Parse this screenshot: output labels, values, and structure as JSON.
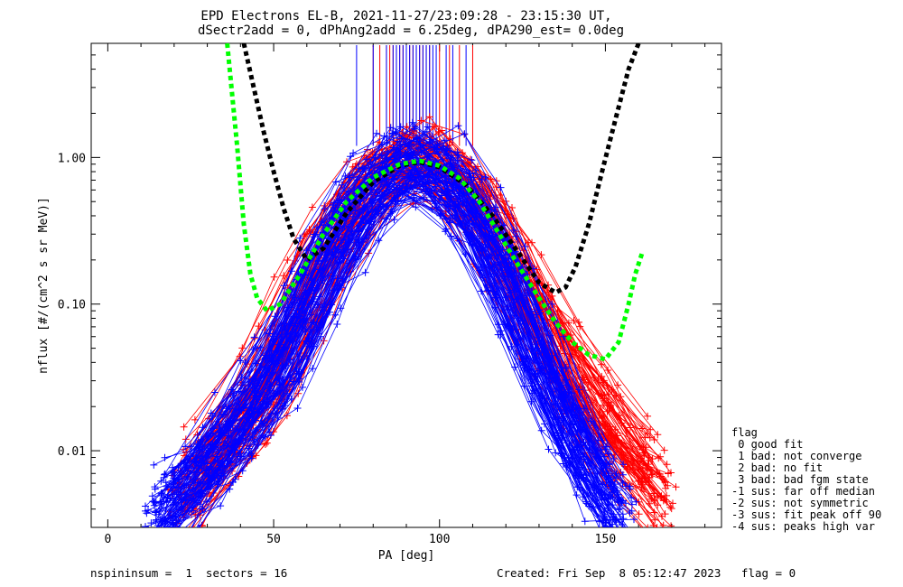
{
  "title_line1": "EPD Electrons EL-B, 2021-11-27/23:09:28 - 23:15:30 UT,",
  "title_line2": "dSectr2add = 0, dPhAng2add = 6.25deg, dPA290_est=   0.0deg",
  "footer": {
    "left": "nspininsum =  1  sectors = 16",
    "right": "Created: Fri Sep  8 05:12:47 2023   flag = 0"
  },
  "legend": {
    "title": "flag",
    "items": [
      " 0 good fit",
      " 1 bad: not converge",
      " 2 bad: no fit",
      " 3 bad: bad fgm state",
      "-1 sus: far off median",
      "-2 sus: not symmetric",
      "-3 sus: fit peak off 90",
      "-4 sus: peaks high var"
    ]
  },
  "chart_data": {
    "type": "line",
    "xlabel": "PA [deg]",
    "ylabel": "nflux [#/(cm^2 s sr MeV)]",
    "xlim": [
      -5,
      185
    ],
    "ylim": [
      0.003,
      6
    ],
    "yscale": "log",
    "xticks": [
      0,
      50,
      100,
      150
    ],
    "yticks": [
      0.01,
      0.1,
      1.0
    ],
    "ytick_labels": [
      "0.01",
      "0.10",
      "1.00"
    ],
    "series": [
      {
        "color": "#0000ff",
        "style": "many thin lines with + markers (spin-sector profiles)",
        "profile": {
          "x": [
            12,
            25,
            40,
            55,
            65,
            75,
            85,
            93,
            100,
            110,
            120,
            130,
            140,
            150,
            158
          ],
          "y": [
            0.003,
            0.006,
            0.015,
            0.05,
            0.18,
            0.45,
            0.8,
            0.95,
            0.8,
            0.45,
            0.15,
            0.04,
            0.012,
            0.005,
            0.003
          ]
        }
      },
      {
        "color": "#ff0000",
        "style": "many thin lines with + markers (spin-sector profiles)",
        "profile": {
          "x": [
            20,
            30,
            45,
            55,
            65,
            75,
            85,
            93,
            100,
            110,
            120,
            130,
            140,
            155,
            170
          ],
          "y": [
            0.004,
            0.008,
            0.02,
            0.06,
            0.2,
            0.5,
            0.85,
            0.98,
            0.85,
            0.55,
            0.2,
            0.08,
            0.03,
            0.01,
            0.004
          ]
        }
      },
      {
        "color": "#00ff00",
        "style": "thick dashed fit",
        "x": [
          36,
          39,
          41,
          43,
          45,
          48,
          52,
          58,
          65,
          72,
          80,
          88,
          94,
          100,
          106,
          112,
          118,
          124,
          130,
          135,
          140,
          145,
          150,
          154,
          157,
          159,
          161
        ],
        "y": [
          6,
          1.2,
          0.35,
          0.16,
          0.11,
          0.09,
          0.1,
          0.16,
          0.3,
          0.5,
          0.73,
          0.9,
          0.95,
          0.88,
          0.72,
          0.5,
          0.3,
          0.18,
          0.11,
          0.075,
          0.055,
          0.045,
          0.042,
          0.055,
          0.1,
          0.16,
          0.22
        ]
      },
      {
        "color": "#000000",
        "style": "thick dashed fit",
        "x": [
          41,
          44,
          47,
          50,
          53,
          56,
          60,
          65,
          72,
          80,
          88,
          94,
          100,
          108,
          116,
          124,
          130,
          135,
          138,
          141,
          145,
          149,
          153,
          157,
          160
        ],
        "y": [
          6,
          3,
          1.5,
          0.8,
          0.45,
          0.28,
          0.2,
          0.24,
          0.42,
          0.68,
          0.88,
          0.93,
          0.86,
          0.65,
          0.4,
          0.22,
          0.14,
          0.12,
          0.13,
          0.18,
          0.35,
          0.8,
          1.8,
          4,
          6
        ]
      }
    ],
    "spikes": {
      "description": "vertical lines at top reaching above the axis",
      "blue_x": [
        75,
        80,
        84,
        86,
        87,
        88,
        89,
        90,
        91,
        92,
        93,
        94,
        95,
        96,
        97,
        98,
        99,
        102,
        104,
        108
      ],
      "red_x": [
        80,
        82,
        84,
        85,
        86,
        87,
        88,
        89,
        90,
        91,
        92,
        93,
        94,
        95,
        96,
        97,
        100,
        103,
        106,
        110
      ]
    }
  }
}
